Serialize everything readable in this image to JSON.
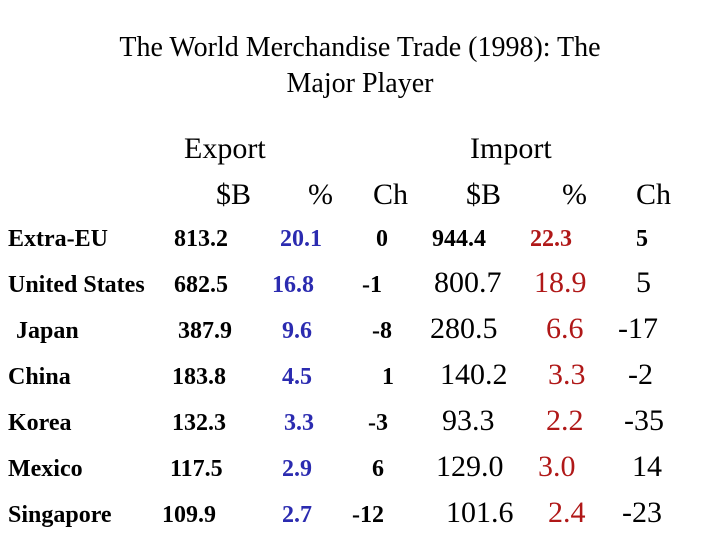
{
  "title_line1": "The World Merchandise Trade (1998): The",
  "title_line2": "Major Player",
  "headers": {
    "export": "Export",
    "import": "Import",
    "export_usd": "$B",
    "export_pct": "%",
    "export_ch": "Ch",
    "import_usd": "$B",
    "import_pct": "%",
    "import_ch": "Ch"
  },
  "rows": [
    {
      "name": "Extra-EU",
      "exp_usd": "813.2",
      "exp_pct": "20.1",
      "exp_ch": "0",
      "imp_usd": "944.4",
      "imp_pct": "22.3",
      "imp_ch": "5"
    },
    {
      "name": "United States",
      "exp_usd": "682.5",
      "exp_pct": "16.8",
      "exp_ch": "-1",
      "imp_usd": "800.7",
      "imp_pct": "18.9",
      "imp_ch": "5"
    },
    {
      "name": "Japan",
      "exp_usd": "387.9",
      "exp_pct": "9.6",
      "exp_ch": "-8",
      "imp_usd": "280.5",
      "imp_pct": "6.6",
      "imp_ch": "-17"
    },
    {
      "name": "China",
      "exp_usd": "183.8",
      "exp_pct": "4.5",
      "exp_ch": "1",
      "imp_usd": "140.2",
      "imp_pct": "3.3",
      "imp_ch": "-2"
    },
    {
      "name": "Korea",
      "exp_usd": "132.3",
      "exp_pct": "3.3",
      "exp_ch": "-3",
      "imp_usd": "93.3",
      "imp_pct": "2.2",
      "imp_ch": "-35"
    },
    {
      "name": "Mexico",
      "exp_usd": "117.5",
      "exp_pct": "2.9",
      "exp_ch": "6",
      "imp_usd": "129.0",
      "imp_pct": "3.0",
      "imp_ch": "14"
    },
    {
      "name": "Singapore",
      "exp_usd": "109.9",
      "exp_pct": "2.7",
      "exp_ch": "-12",
      "imp_usd": "101.6",
      "imp_pct": "2.4",
      "imp_ch": "-23"
    }
  ],
  "colors": {
    "pct_export": "#2b2bb0",
    "pct_import": "#b01818"
  }
}
